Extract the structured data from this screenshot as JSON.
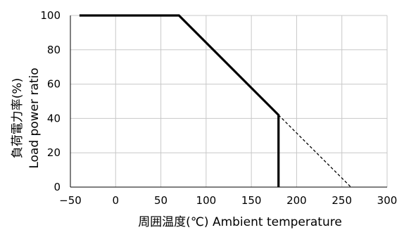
{
  "chart_data": {
    "type": "line",
    "title": "",
    "xlabel": "周囲温度(℃)  Ambient temperature",
    "ylabel_line1": "負荷電力率(%)",
    "ylabel_line2": "Load power ratio",
    "xlim": [
      -50,
      300
    ],
    "ylim": [
      0,
      100
    ],
    "x_ticks": [
      -50,
      0,
      50,
      100,
      150,
      200,
      250,
      300
    ],
    "y_ticks": [
      0,
      20,
      40,
      60,
      80,
      100
    ],
    "grid": true,
    "legend": "none",
    "series": [
      {
        "style": "solid",
        "color": "#000000",
        "x": [
          -40,
          70,
          180,
          180
        ],
        "y": [
          100,
          100,
          42,
          0
        ]
      },
      {
        "style": "dashed",
        "color": "#000000",
        "x": [
          180,
          260
        ],
        "y": [
          42,
          0
        ]
      }
    ]
  }
}
